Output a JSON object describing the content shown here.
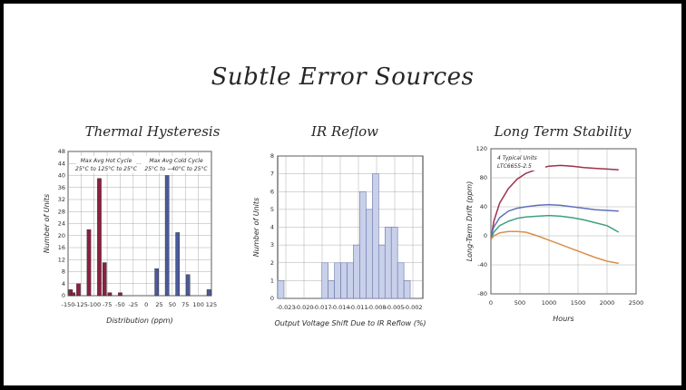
{
  "slide_title": "Subtle Error Sources",
  "chart_data": [
    {
      "type": "bar",
      "title": "Thermal Hysteresis",
      "xlabel": "Distribution (ppm)",
      "ylabel": "Number of Units",
      "ylim": [
        0,
        48
      ],
      "yticks": [
        0,
        4,
        8,
        12,
        16,
        20,
        24,
        28,
        32,
        36,
        40,
        44,
        48
      ],
      "xlim": [
        -150,
        125
      ],
      "xticks": [
        "-150",
        "-125",
        "-100",
        "-75",
        "-50",
        "-25",
        "0",
        "25",
        "50",
        "75",
        "100",
        "125"
      ],
      "grid": true,
      "annotations": [
        {
          "lines": [
            "Max Avg Hot Cycle",
            "25°C to 125°C to 25°C"
          ]
        },
        {
          "lines": [
            "Max Avg Cold Cycle",
            "25°C to −40°C to 25°C"
          ]
        }
      ],
      "series": [
        {
          "color": "#8b2040",
          "x": [
            -145,
            -140,
            -130,
            -110,
            -90,
            -80,
            -70,
            -50,
            -40
          ],
          "values": [
            2,
            1,
            4,
            22,
            39,
            11,
            1,
            1,
            0
          ]
        },
        {
          "color": "#4a5a9a",
          "x": [
            20,
            40,
            60,
            80,
            120
          ],
          "values": [
            9,
            40,
            21,
            7,
            2
          ]
        }
      ]
    },
    {
      "type": "bar",
      "title": "IR Reflow",
      "xlabel": "Output Voltage Shift Due to IR Reflow (%)",
      "ylabel": "Number of Units",
      "ylim": [
        0,
        8
      ],
      "yticks": [
        0,
        1,
        2,
        3,
        4,
        5,
        6,
        7,
        8
      ],
      "xlim": [
        -0.023,
        0.0
      ],
      "xticks": [
        "-0.023",
        "-0.020",
        "-0.017",
        "-0.014",
        "-0.011",
        "-0.008",
        "-0.005",
        "-0.002"
      ],
      "grid": true,
      "color": "#c8d0ea",
      "bin_width": 0.001,
      "x": [
        -0.0225,
        -0.0185,
        -0.0165,
        -0.0155,
        -0.0145,
        -0.0135,
        -0.0125,
        -0.0115,
        -0.0105,
        -0.0095,
        -0.0085,
        -0.0075,
        -0.0065,
        -0.0055,
        -0.0045,
        -0.0035,
        -0.0025,
        -0.0015,
        -0.0005
      ],
      "values": [
        1,
        0,
        0,
        2,
        1,
        2,
        2,
        2,
        3,
        6,
        5,
        7,
        3,
        4,
        4,
        2,
        1,
        0,
        0
      ]
    },
    {
      "type": "line",
      "title": "Long Term Stability",
      "xlabel": "Hours",
      "ylabel": "Long-Term Drift (ppm)",
      "xlim": [
        0,
        2500
      ],
      "ylim": [
        -80,
        120
      ],
      "xticks": [
        0,
        500,
        1000,
        1500,
        2000,
        2500
      ],
      "yticks": [
        -80,
        -40,
        0,
        40,
        80,
        120
      ],
      "grid": true,
      "annotation": [
        "4 Typical Units",
        "LTC6655-2.5"
      ],
      "series": [
        {
          "color": "#a0304a",
          "x": [
            0,
            50,
            150,
            300,
            450,
            600,
            800,
            1000,
            1200,
            1400,
            1600,
            1800,
            2000,
            2200
          ],
          "values": [
            -5,
            20,
            45,
            65,
            78,
            86,
            92,
            96,
            97,
            96,
            94,
            93,
            92,
            91
          ]
        },
        {
          "color": "#6070b8",
          "x": [
            0,
            50,
            150,
            300,
            450,
            600,
            800,
            1000,
            1200,
            1400,
            1600,
            1800,
            2000,
            2200
          ],
          "values": [
            0,
            12,
            25,
            34,
            38,
            40,
            42,
            43,
            42,
            40,
            38,
            36,
            35,
            34
          ]
        },
        {
          "color": "#3fa080",
          "x": [
            0,
            50,
            150,
            300,
            450,
            600,
            800,
            1000,
            1200,
            1400,
            1600,
            1800,
            2000,
            2200
          ],
          "values": [
            -5,
            5,
            14,
            20,
            24,
            26,
            27,
            28,
            27,
            25,
            22,
            18,
            14,
            5
          ]
        },
        {
          "color": "#d8904a",
          "x": [
            0,
            50,
            150,
            300,
            450,
            600,
            800,
            1000,
            1200,
            1400,
            1600,
            1800,
            2000,
            2200
          ],
          "values": [
            -5,
            0,
            4,
            6,
            6,
            5,
            0,
            -6,
            -12,
            -18,
            -24,
            -30,
            -35,
            -38
          ]
        }
      ]
    }
  ]
}
